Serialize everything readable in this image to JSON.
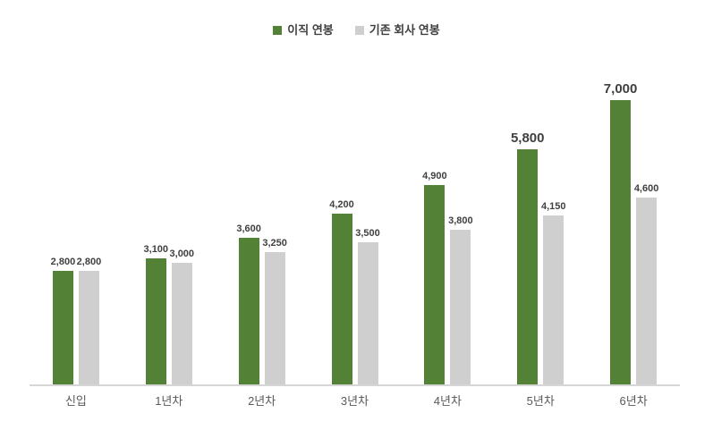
{
  "chart_data": {
    "type": "bar",
    "title": "",
    "xlabel": "",
    "ylabel": "",
    "legend_position": "top",
    "grid": false,
    "y_axis_visible": false,
    "ylim": [
      0,
      7000
    ],
    "categories": [
      "신입",
      "1년차",
      "2년차",
      "3년차",
      "4년차",
      "5년차",
      "6년차"
    ],
    "series": [
      {
        "name": "이직 연봉",
        "color": "#538135",
        "values": [
          2800,
          3100,
          3600,
          4200,
          4900,
          5800,
          7000
        ],
        "labels": [
          "2,800",
          "3,100",
          "3,600",
          "4,200",
          "4,900",
          "5,800",
          "7,000"
        ],
        "emphasized": [
          false,
          false,
          false,
          false,
          false,
          true,
          true
        ]
      },
      {
        "name": "기존 회사 연봉",
        "color": "#d0cfcf",
        "values": [
          2800,
          3000,
          3250,
          3500,
          3800,
          4150,
          4600
        ],
        "labels": [
          "2,800",
          "3,000",
          "3,250",
          "3,500",
          "3,800",
          "4,150",
          "4,600"
        ],
        "emphasized": [
          false,
          false,
          false,
          false,
          false,
          false,
          false
        ]
      }
    ]
  },
  "colors": {
    "background": "#ffffff",
    "series_1": "#538135",
    "series_2": "#d0cfcf",
    "data_label_text": "#404040",
    "axis_label_text": "#595959",
    "axis_line": "#d6d6d6"
  }
}
